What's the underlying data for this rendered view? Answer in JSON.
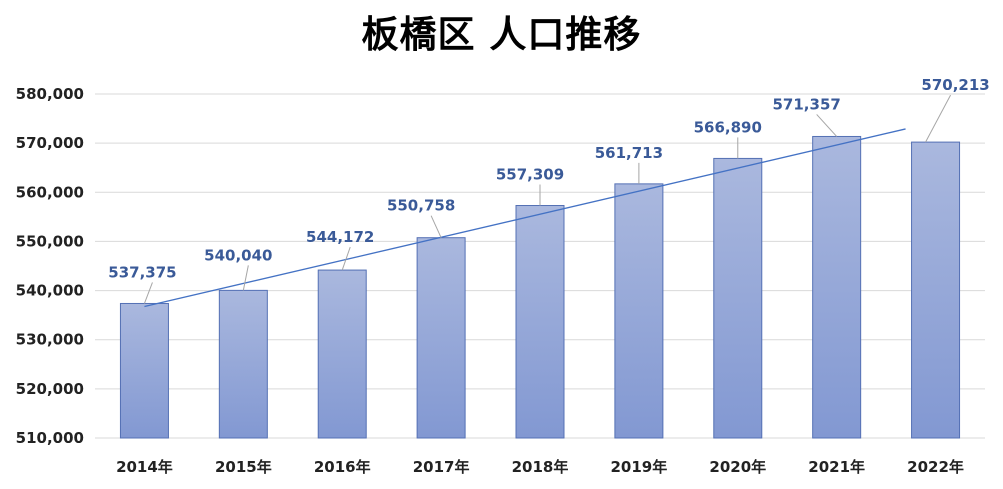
{
  "chart_data": {
    "type": "bar",
    "title": "板橋区 人口推移",
    "xlabel": "",
    "ylabel": "",
    "categories": [
      "2014年",
      "2015年",
      "2016年",
      "2017年",
      "2018年",
      "2019年",
      "2020年",
      "2021年",
      "2022年"
    ],
    "values": [
      537375,
      540040,
      544172,
      550758,
      557309,
      561713,
      566890,
      571357,
      570213
    ],
    "value_labels": [
      "537,375",
      "540,040",
      "544,172",
      "550,758",
      "557,309",
      "561,713",
      "566,890",
      "571,357",
      "570,213"
    ],
    "yticks": [
      "510,000",
      "520,000",
      "530,000",
      "540,000",
      "550,000",
      "560,000",
      "570,000",
      "580,000"
    ],
    "ylim": [
      510000,
      580000
    ],
    "grid": true,
    "trendline": "linear",
    "colors": {
      "bar_top": "#aab8de",
      "bar_bottom": "#8298d2",
      "bar_stroke": "#5470b4",
      "trendline": "#4472c4",
      "gridline": "#d9d9d9",
      "data_label": "#3a5a98",
      "leader_line": "#a6a6a6"
    }
  }
}
